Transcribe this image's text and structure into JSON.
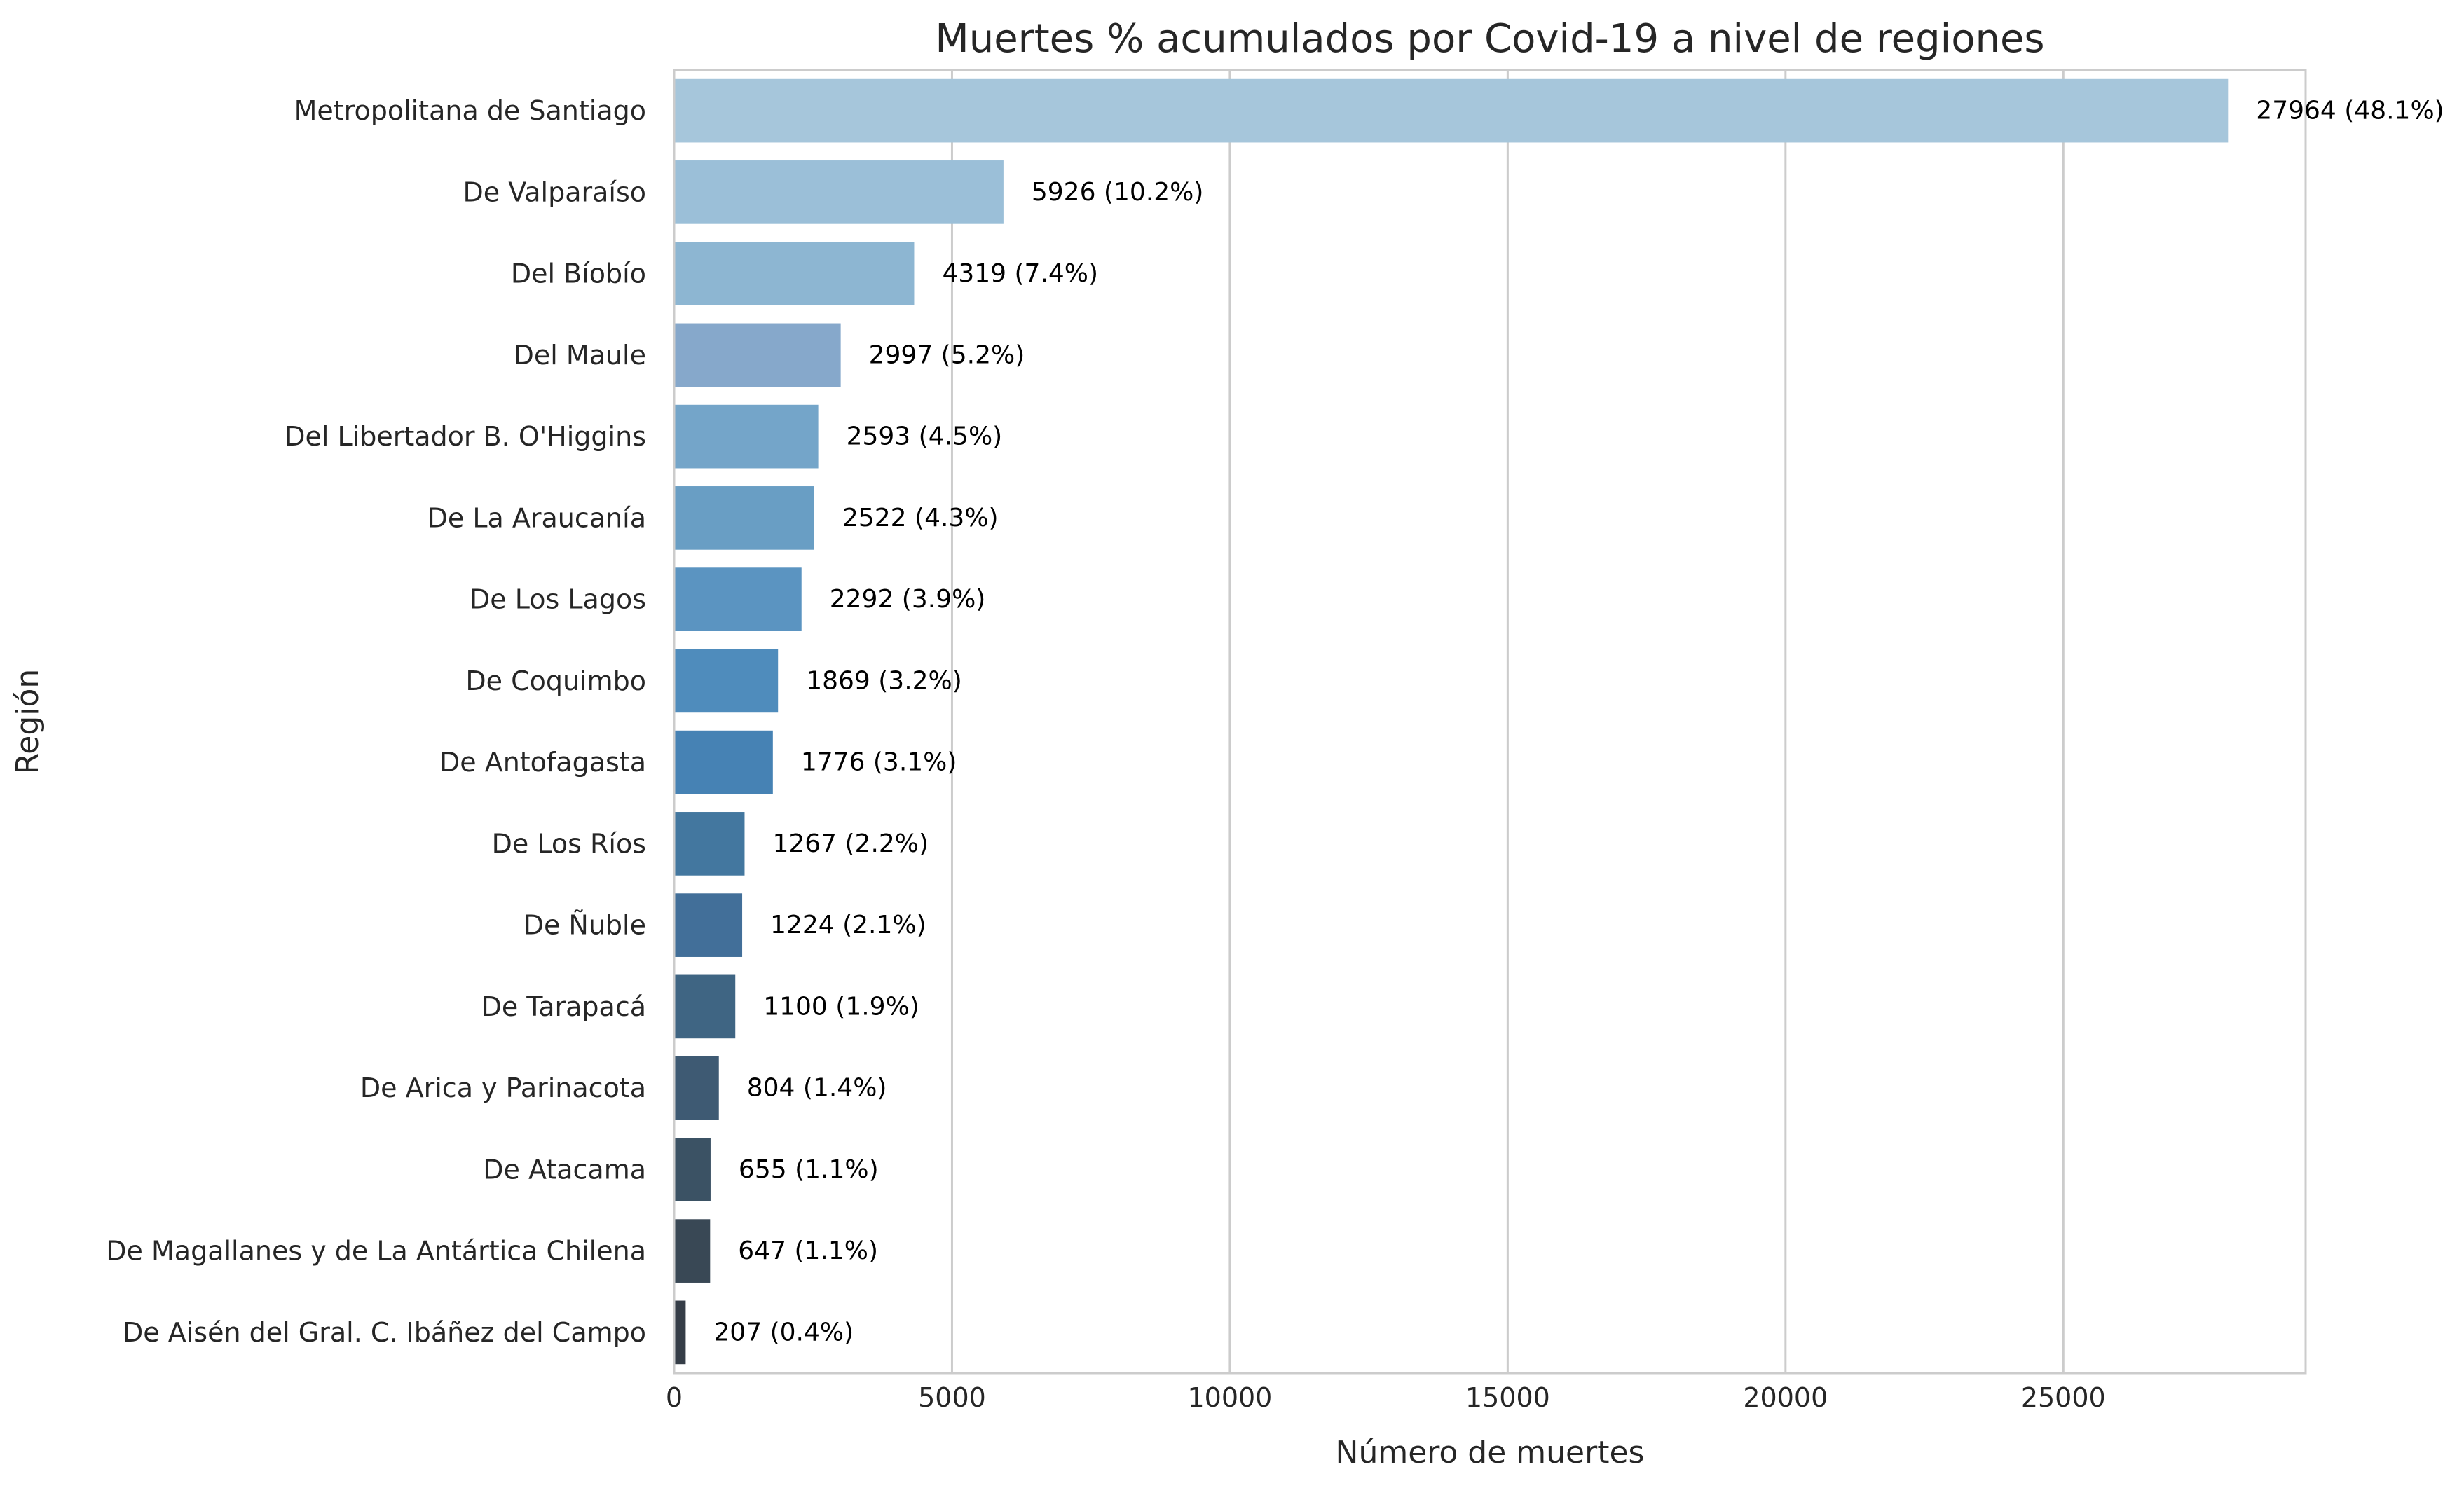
{
  "chart_data": {
    "type": "bar",
    "orientation": "horizontal",
    "title": "Muertes % acumulados por Covid-19 a nivel de regiones",
    "xlabel": "Número de muertes",
    "ylabel": "Región",
    "xlim": [
      0,
      29360
    ],
    "xticks": [
      0,
      5000,
      10000,
      15000,
      20000,
      25000
    ],
    "grid": "vertical",
    "categories": [
      "Metropolitana de Santiago",
      "De Valparaíso",
      "Del Bíobío",
      "Del Maule",
      "Del Libertador B. O'Higgins",
      "De La Araucanía",
      "De Los Lagos",
      "De Coquimbo",
      "De Antofagasta",
      "De Los Ríos",
      "De Ñuble",
      "De Tarapacá",
      "De Arica y Parinacota",
      "De Atacama",
      "De Magallanes y de La Antártica Chilena",
      "De Aisén del Gral. C. Ibáñez del Campo"
    ],
    "values": [
      27964,
      5926,
      4319,
      2997,
      2593,
      2522,
      2292,
      1869,
      1776,
      1267,
      1224,
      1100,
      804,
      655,
      647,
      207
    ],
    "data_labels": [
      "27964 (48.1%)",
      "5926 (10.2%)",
      "4319 (7.4%)",
      "2997 (5.2%)",
      "2593 (4.5%)",
      "2522 (4.3%)",
      "2292 (3.9%)",
      "1869 (3.2%)",
      "1776 (3.1%)",
      "1267 (2.2%)",
      "1224 (2.1%)",
      "1100 (1.9%)",
      "804 (1.4%)",
      "655 (1.1%)",
      "647 (1.1%)",
      "207 (0.4%)"
    ],
    "colors": [
      "#a6c6db",
      "#9bbfd8",
      "#8db6d2",
      "#86a8cb",
      "#74a5c9",
      "#699ec4",
      "#5b94c1",
      "#4f8cbc",
      "#4682b4",
      "#43779f",
      "#426f99",
      "#3f6583",
      "#3e5a73",
      "#3b5264",
      "#394855",
      "#353d47"
    ]
  }
}
